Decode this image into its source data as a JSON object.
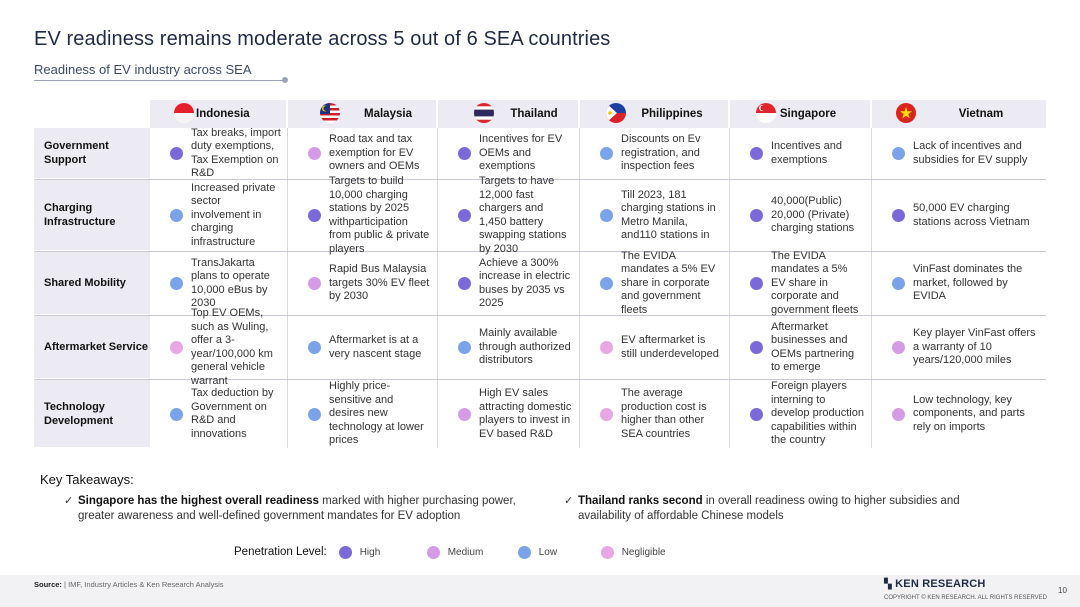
{
  "title": "EV readiness remains moderate across 5 out of 6 SEA countries",
  "subtitle": "Readiness of EV industry across SEA",
  "countries": [
    "Indonesia",
    "Malaysia",
    "Thailand",
    "Philippines",
    "Singapore",
    "Vietnam"
  ],
  "rows": [
    {
      "label": "Government Support",
      "cells": [
        {
          "level": "high",
          "text": "Tax breaks, import duty exemptions, Tax Exemption on R&D"
        },
        {
          "level": "medium",
          "text": "Road tax and tax exemption for EV owners and OEMs"
        },
        {
          "level": "high",
          "text": "Incentives for EV OEMs and exemptions"
        },
        {
          "level": "low",
          "text": "Discounts on Ev registration, and inspection fees"
        },
        {
          "level": "high",
          "text": "Incentives and exemptions"
        },
        {
          "level": "low",
          "text": "Lack of incentives and subsidies for EV supply"
        }
      ]
    },
    {
      "label": "Charging Infrastructure",
      "cells": [
        {
          "level": "low",
          "text": "Increased private sector involvement in charging infrastructure"
        },
        {
          "level": "high",
          "text": "Targets to build 10,000 charging stations by 2025 withparticipation from public & private players"
        },
        {
          "level": "high",
          "text": "Targets to have 12,000 fast chargers and 1,450 battery swapping stations by 2030"
        },
        {
          "level": "low",
          "text": "Till 2023, 181 charging stations in Metro Manila, and110 stations in"
        },
        {
          "level": "high",
          "text": "40,000(Public) 20,000 (Private) charging stations"
        },
        {
          "level": "high",
          "text": "50,000 EV charging stations across Vietnam"
        }
      ]
    },
    {
      "label": "Shared Mobility",
      "cells": [
        {
          "level": "low",
          "text": "TransJakarta plans to operate 10,000 eBus by 2030"
        },
        {
          "level": "medium",
          "text": "Rapid Bus Malaysia targets 30% EV fleet by 2030"
        },
        {
          "level": "high",
          "text": "Achieve a 300% increase in electric buses by 2035 vs 2025"
        },
        {
          "level": "low",
          "text": "The EVIDA mandates a 5% EV share in corporate and government fleets"
        },
        {
          "level": "high",
          "text": "The EVIDA mandates a 5% EV share in corporate and government fleets"
        },
        {
          "level": "low",
          "text": "VinFast dominates the market, followed by EVIDA"
        }
      ]
    },
    {
      "label": "Aftermarket Service",
      "cells": [
        {
          "level": "negligible",
          "text": "Top EV OEMs, such as Wuling, offer a 3-year/100,000 km general vehicle warrant"
        },
        {
          "level": "low",
          "text": "Aftermarket is at a very nascent stage"
        },
        {
          "level": "low",
          "text": "Mainly available through authorized distributors"
        },
        {
          "level": "negligible",
          "text": "EV aftermarket is still underdeveloped"
        },
        {
          "level": "high",
          "text": "Aftermarket businesses and OEMs partnering to emerge"
        },
        {
          "level": "medium",
          "text": "Key player VinFast offers a warranty of 10 years/120,000 miles"
        }
      ]
    },
    {
      "label": "Technology Development",
      "cells": [
        {
          "level": "low",
          "text": "Tax deduction by Government on R&D and innovations"
        },
        {
          "level": "low",
          "text": "Highly price-sensitive and desires new technology at lower prices"
        },
        {
          "level": "medium",
          "text": "High EV sales attracting domestic players to invest in EV based R&D"
        },
        {
          "level": "negligible",
          "text": "The average production cost is higher than other SEA countries"
        },
        {
          "level": "high",
          "text": "Foreign players interning to develop production capabilities within the country"
        },
        {
          "level": "medium",
          "text": "Low technology, key components, and parts rely on imports"
        }
      ]
    }
  ],
  "takeaways": {
    "title": "Key Takeaways:",
    "items": [
      {
        "bold": "Singapore has the highest overall readiness",
        "rest": " marked with higher purchasing power, greater awareness and well-defined government mandates for EV adoption"
      },
      {
        "bold": "Thailand ranks second",
        "rest": " in overall readiness owing to higher subsidies and availability of affordable Chinese models"
      }
    ]
  },
  "legend": {
    "label": "Penetration Level:",
    "items": [
      {
        "name": "High",
        "color": "#7b68d9"
      },
      {
        "name": "Medium",
        "color": "#d59be6"
      },
      {
        "name": "Low",
        "color": "#7aa3e8"
      },
      {
        "name": "Negligible",
        "color": "#e8a7e4"
      }
    ]
  },
  "footer": {
    "source_label": "Source:",
    "source_text": "IMF, Industry Articles & Ken Research Analysis",
    "brand": "KEN RESEARCH",
    "copyright": "COPYRIGHT © KEN RESEARCH. ALL RIGHTS RESERVED",
    "page": "10"
  }
}
